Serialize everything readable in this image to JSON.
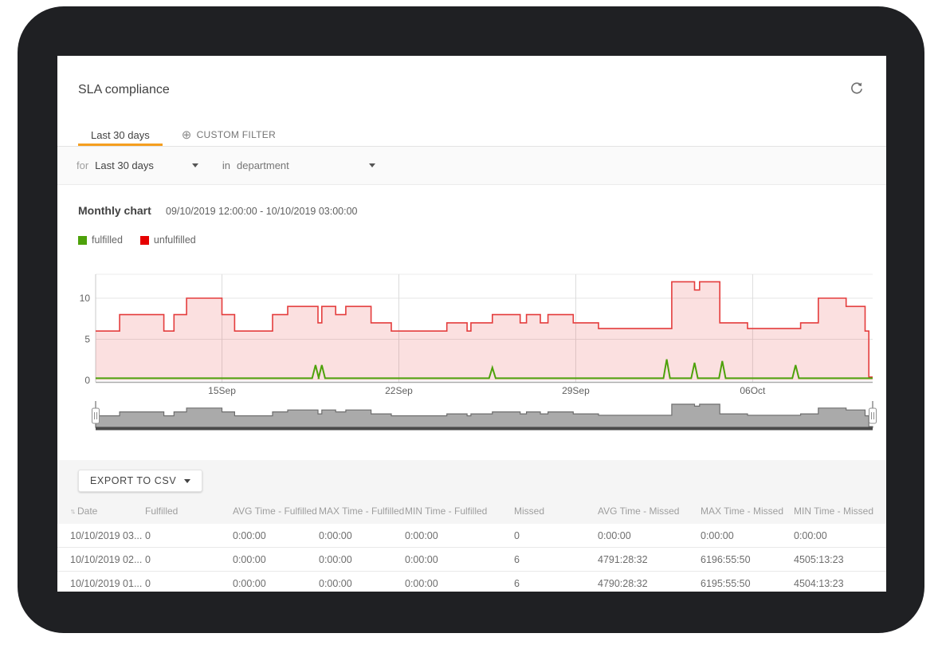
{
  "header": {
    "title": "SLA compliance"
  },
  "tabs": [
    {
      "label": "Last 30 days",
      "active": true
    },
    {
      "label": "CUSTOM FILTER",
      "active": false,
      "icon": "circled-plus-icon"
    }
  ],
  "filter_bar": {
    "for_label": "for",
    "period_value": "Last 30 days",
    "in_label": "in",
    "department_value": "department"
  },
  "chart_section": {
    "title": "Monthly chart",
    "date_range": "09/10/2019 12:00:00 - 10/10/2019 03:00:00",
    "legend": [
      {
        "label": "fulfilled",
        "color": "#4da10a"
      },
      {
        "label": "unfulfilled",
        "color": "#e60000"
      }
    ]
  },
  "chart_data": {
    "type": "area",
    "title": "Monthly chart",
    "x_start": "09/10/2019 12:00:00",
    "x_end": "10/10/2019 03:00:00",
    "total_days": 30.75,
    "x_ticks": [
      [
        5,
        "15Sep"
      ],
      [
        12,
        "22Sep"
      ],
      [
        19,
        "29Sep"
      ],
      [
        26,
        "06Oct"
      ]
    ],
    "y_ticks": [
      0,
      5,
      10
    ],
    "ylim": [
      0,
      13
    ],
    "grid": true,
    "legend_position": "top-left",
    "series": [
      {
        "name": "unfulfilled",
        "type": "step-area",
        "color": "#e43d3d",
        "fill": "rgba(228,61,61,0.16)",
        "points_day_value": [
          [
            0,
            6
          ],
          [
            0.95,
            8
          ],
          [
            2.7,
            6
          ],
          [
            3.1,
            8
          ],
          [
            3.6,
            10
          ],
          [
            5,
            8
          ],
          [
            5.5,
            6
          ],
          [
            7,
            8
          ],
          [
            7.6,
            9
          ],
          [
            8.8,
            7
          ],
          [
            8.95,
            9
          ],
          [
            9.5,
            8
          ],
          [
            9.9,
            9
          ],
          [
            10.9,
            7
          ],
          [
            11.7,
            6
          ],
          [
            13.9,
            7
          ],
          [
            14.7,
            6
          ],
          [
            14.85,
            7
          ],
          [
            15.7,
            8
          ],
          [
            16.8,
            7
          ],
          [
            17.05,
            8
          ],
          [
            17.6,
            7
          ],
          [
            17.9,
            8
          ],
          [
            18.9,
            7
          ],
          [
            19.9,
            6.3
          ],
          [
            22.8,
            12
          ],
          [
            23.7,
            11
          ],
          [
            23.9,
            12
          ],
          [
            24.7,
            7
          ],
          [
            25.8,
            6.3
          ],
          [
            27.9,
            7
          ],
          [
            28.6,
            10
          ],
          [
            29.7,
            9
          ],
          [
            30.45,
            6
          ],
          [
            30.6,
            0.4
          ]
        ]
      },
      {
        "name": "fulfilled",
        "type": "line-spikes",
        "color": "#4da10a",
        "baseline": 0.25,
        "spikes_day_height": [
          [
            8.7,
            1.6
          ],
          [
            8.95,
            1.6
          ],
          [
            15.7,
            1.3
          ],
          [
            22.6,
            2.3
          ],
          [
            23.7,
            1.9
          ],
          [
            24.8,
            2.1
          ],
          [
            27.7,
            1.6
          ]
        ]
      }
    ],
    "navigator": {
      "fill": "#aaaaaa",
      "outline": "#6e6e6e",
      "bottom_bar": "#4a4a4a"
    }
  },
  "export_button": {
    "label": "EXPORT TO CSV"
  },
  "table": {
    "columns": [
      "Date",
      "Fulfilled",
      "AVG Time - Fulfilled",
      "MAX Time - Fulfilled",
      "MIN Time - Fulfilled",
      "Missed",
      "AVG Time - Missed",
      "MAX Time - Missed",
      "MIN Time - Missed"
    ],
    "rows": [
      [
        "10/10/2019 03...",
        "0",
        "0:00:00",
        "0:00:00",
        "0:00:00",
        "0",
        "0:00:00",
        "0:00:00",
        "0:00:00"
      ],
      [
        "10/10/2019 02...",
        "0",
        "0:00:00",
        "0:00:00",
        "0:00:00",
        "6",
        "4791:28:32",
        "6196:55:50",
        "4505:13:23"
      ],
      [
        "10/10/2019 01...",
        "0",
        "0:00:00",
        "0:00:00",
        "0:00:00",
        "6",
        "4790:28:32",
        "6195:55:50",
        "4504:13:23"
      ]
    ]
  },
  "colors": {
    "accent": "#f59e1f",
    "tab_underline": "#f59e1f"
  }
}
